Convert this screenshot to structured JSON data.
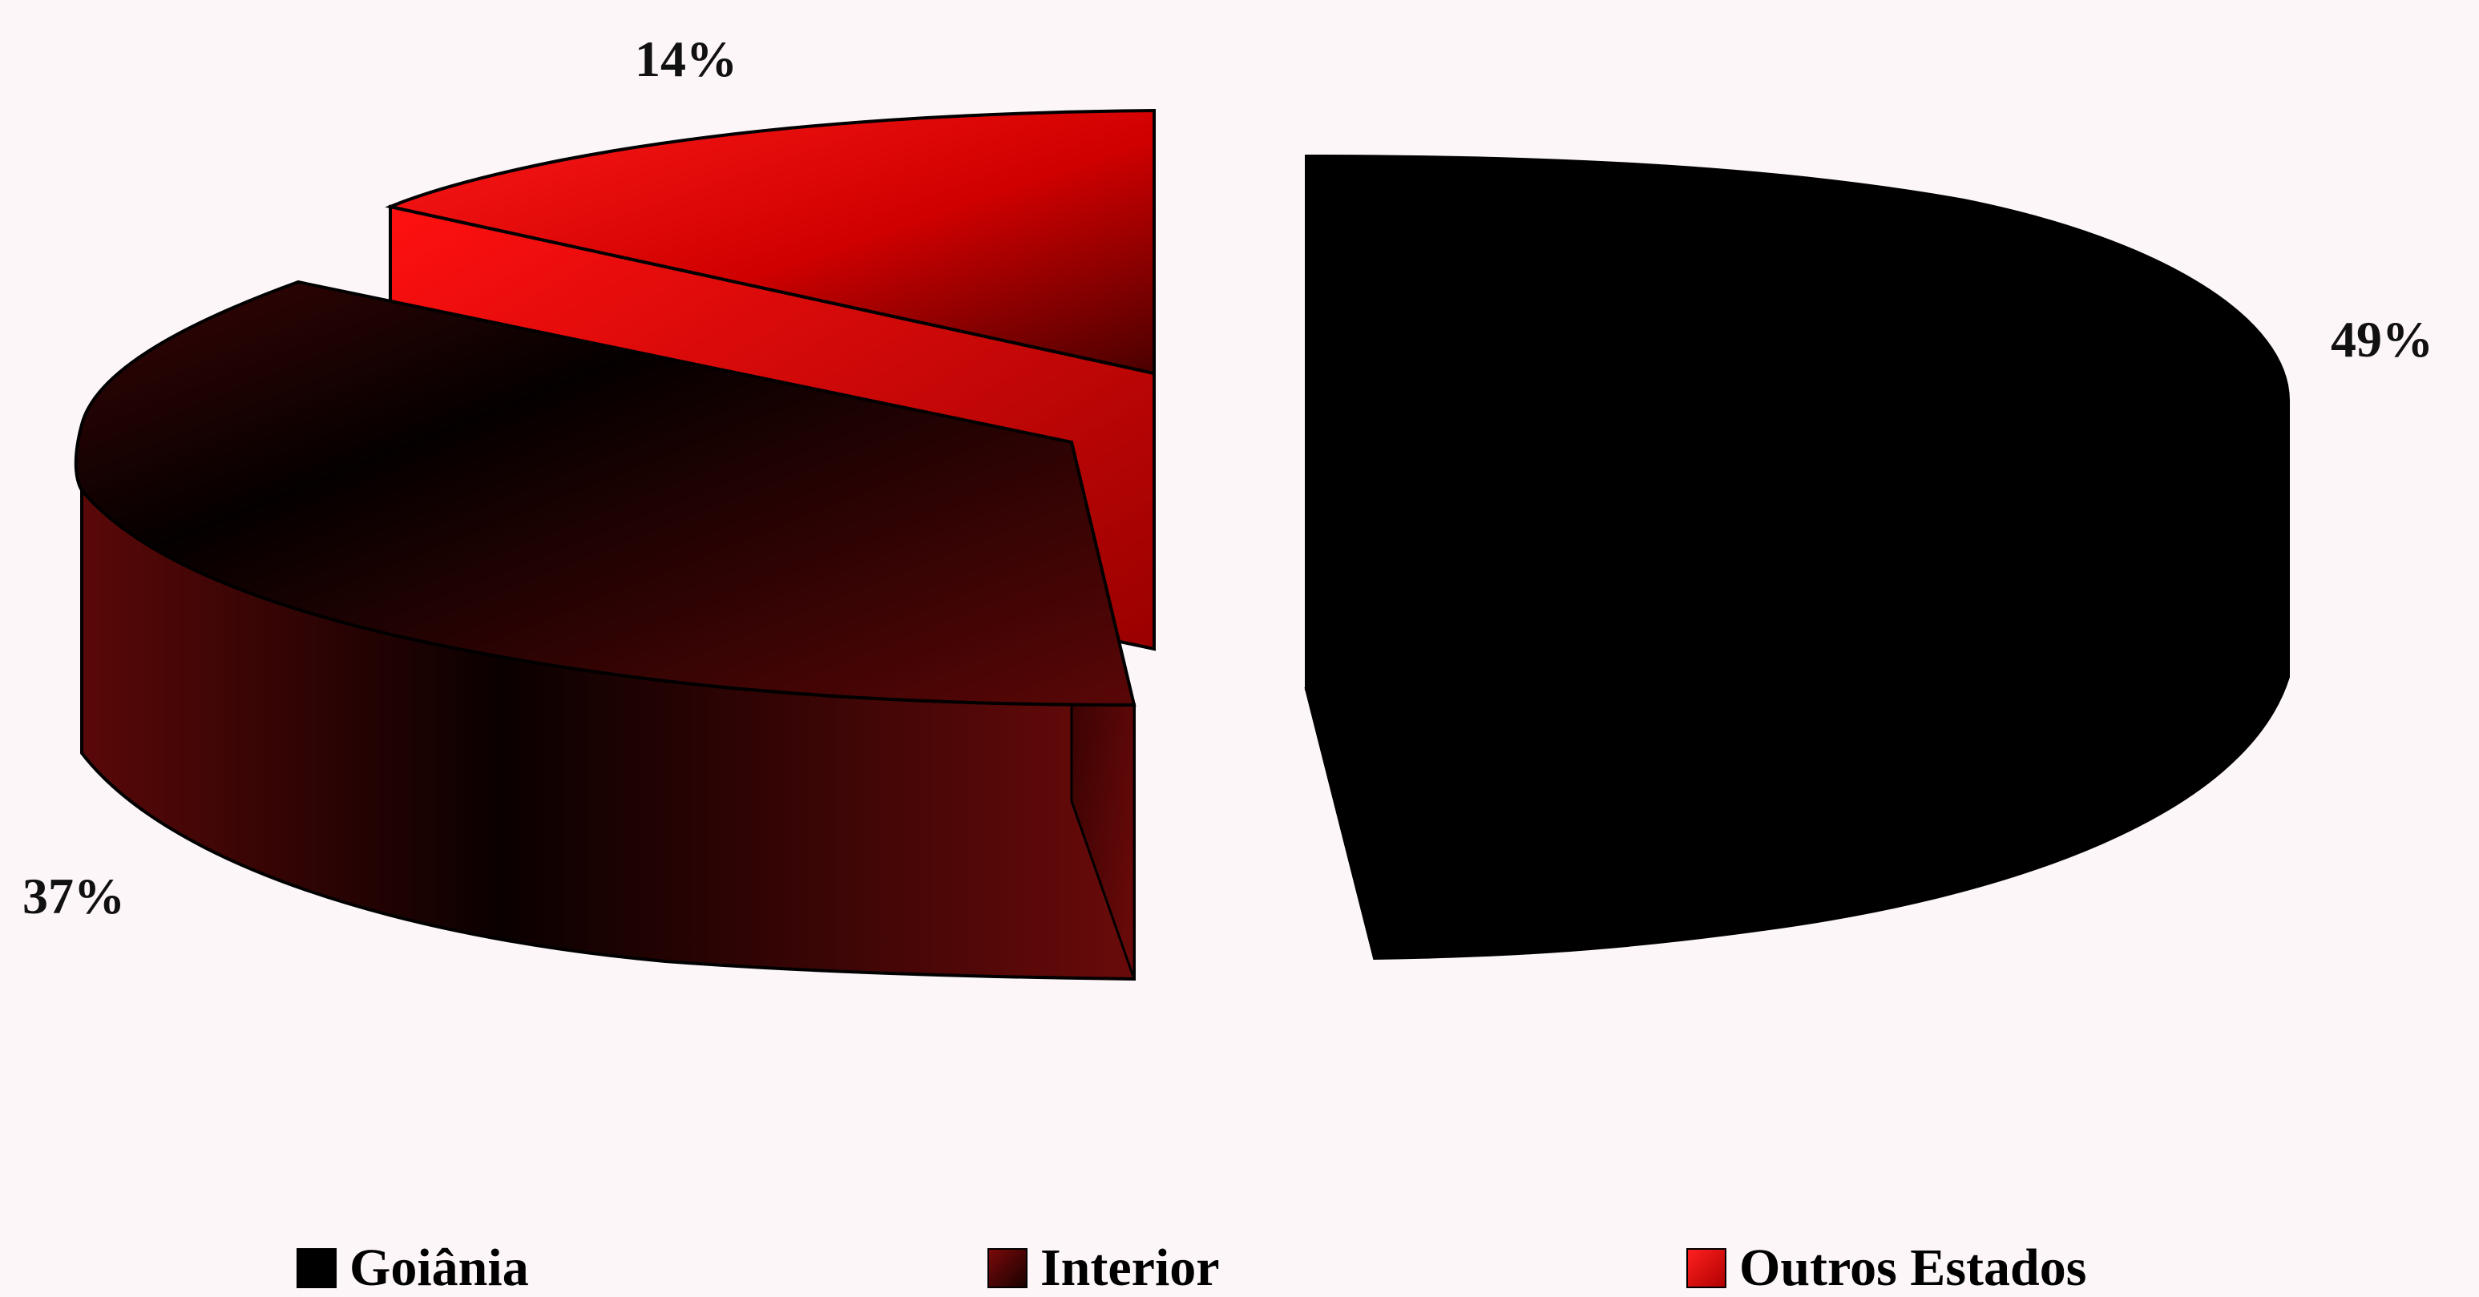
{
  "chart_data": {
    "type": "pie",
    "style": "3d-exploded",
    "slices": [
      {
        "label": "Goiânia",
        "value": 49,
        "value_label": "49%",
        "color": "#000000"
      },
      {
        "label": "Interior",
        "value": 37,
        "value_label": "37%",
        "color": "#5a0a0a"
      },
      {
        "label": "Outros Estados",
        "value": 14,
        "value_label": "14%",
        "color": "#ff0000"
      }
    ],
    "legend_position": "bottom"
  }
}
